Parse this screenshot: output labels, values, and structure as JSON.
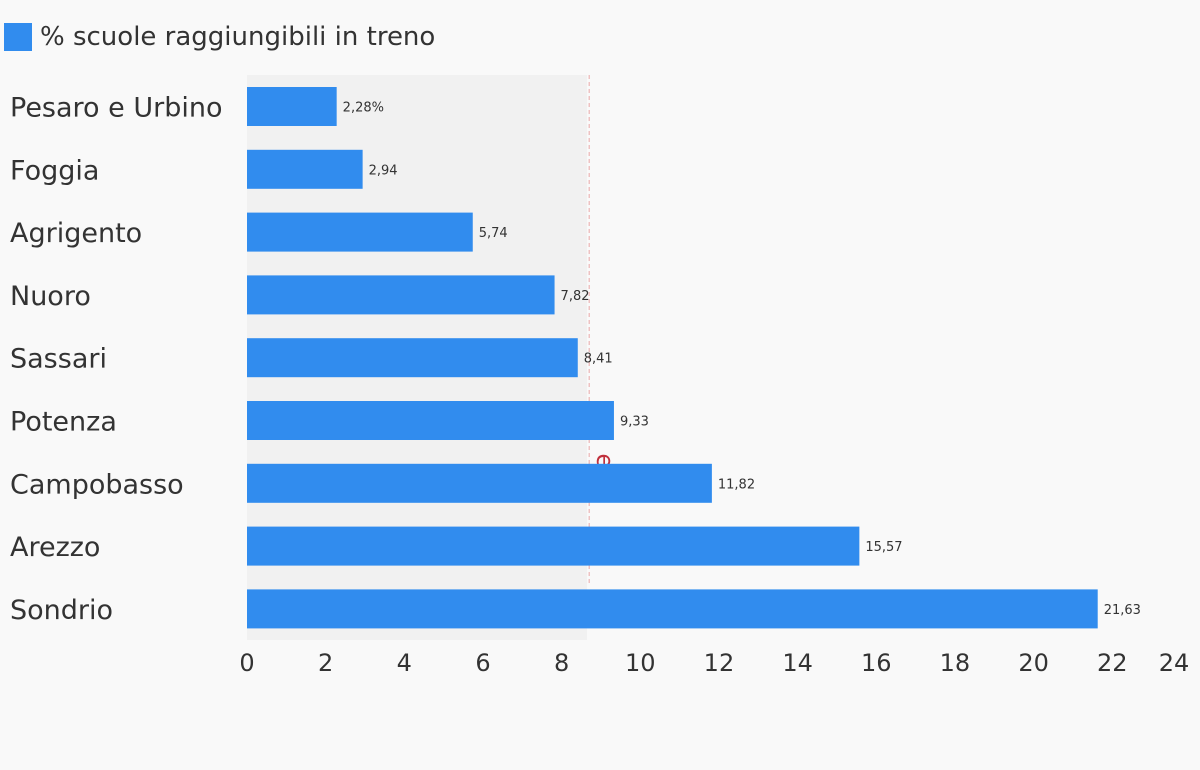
{
  "colors": {
    "bar": "#318cee",
    "plot_background": "#f1f1f1",
    "page_background": "#f9f9f9",
    "text": "#333333",
    "reference_line": "#e8a6a6",
    "reference_label": "#c0313d"
  },
  "legend": {
    "label": "% scuole raggiungibili in treno"
  },
  "chart_data": {
    "type": "bar",
    "orientation": "horizontal",
    "categories": [
      "Pesaro e Urbino",
      "Foggia",
      "Agrigento",
      "Nuoro",
      "Sassari",
      "Potenza",
      "Campobasso",
      "Arezzo",
      "Sondrio"
    ],
    "series": [
      {
        "name": "% scuole raggiungibili in treno",
        "values": [
          2.28,
          2.94,
          5.74,
          7.82,
          8.41,
          9.33,
          11.82,
          15.57,
          21.63
        ],
        "labels": [
          "2,28%",
          "2,94",
          "5,74",
          "7,82",
          "8,41",
          "9,33",
          "11,82",
          "15,57",
          "21,63"
        ]
      }
    ],
    "xlim": [
      0,
      24
    ],
    "x_ticks": [
      0,
      2,
      4,
      6,
      8,
      10,
      12,
      14,
      16,
      18,
      20,
      22,
      24
    ],
    "reference_line": {
      "value": 8.7,
      "label": "edia"
    },
    "grid": false,
    "legend_position": "top-left"
  }
}
